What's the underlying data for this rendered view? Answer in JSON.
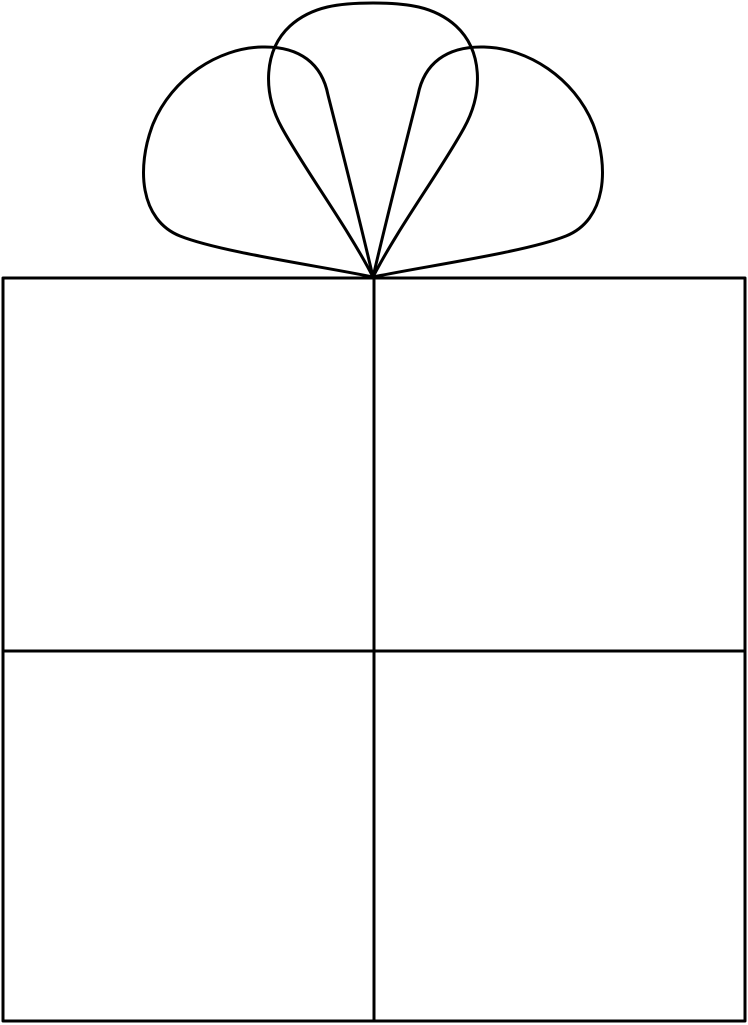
{
  "illustration": {
    "subject": "gift-box-with-bow",
    "colors": {
      "stroke": "#000000",
      "fill": "#ffffff"
    }
  }
}
